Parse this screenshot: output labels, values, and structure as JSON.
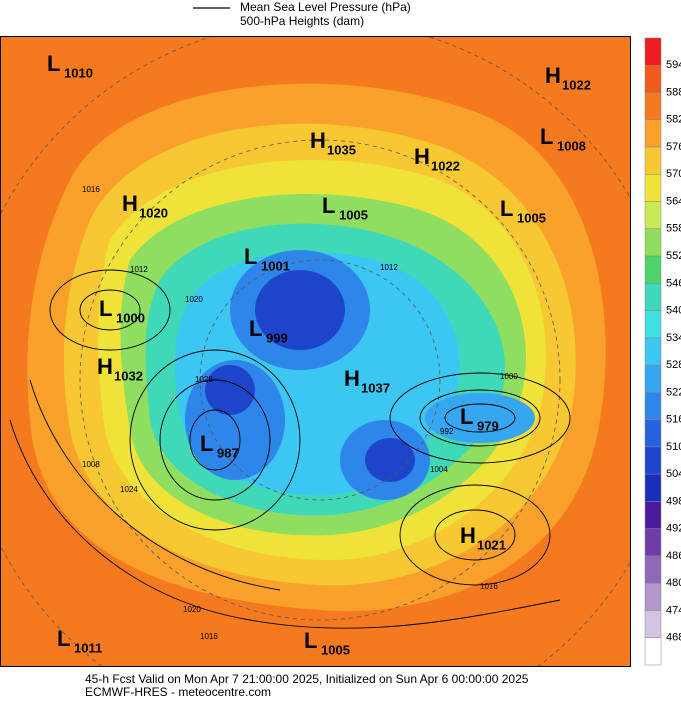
{
  "header": {
    "legend": [
      "Mean Sea Level Pressure (hPa)",
      "500-hPa Heights (dam)"
    ]
  },
  "colorbar": {
    "ticks": [
      594,
      588,
      582,
      576,
      570,
      564,
      558,
      552,
      546,
      540,
      534,
      528,
      522,
      516,
      510,
      504,
      498,
      492,
      486,
      480,
      474,
      468
    ],
    "colors": [
      "#ee1c1c",
      "#f05a1e",
      "#f5791f",
      "#f9a12b",
      "#f8c832",
      "#efe33a",
      "#c9ea55",
      "#8fde5f",
      "#4ed26a",
      "#3fd9b8",
      "#3fe0e0",
      "#3cc6f2",
      "#37a6f0",
      "#2f86ea",
      "#2662de",
      "#1f44cc",
      "#1a2db8",
      "#4a1a9a",
      "#6f3ca8",
      "#9068b8",
      "#b296cc",
      "#d4c4e2",
      "#ffffff"
    ]
  },
  "centers": [
    {
      "letter": "L",
      "value": "1010"
    },
    {
      "letter": "H",
      "value": "1022"
    },
    {
      "letter": "H",
      "value": "1035"
    },
    {
      "letter": "L",
      "value": "1008"
    },
    {
      "letter": "H",
      "value": "1022"
    },
    {
      "letter": "L",
      "value": "1005"
    },
    {
      "letter": "L",
      "value": "1005"
    },
    {
      "letter": "H",
      "value": "1020"
    },
    {
      "letter": "L",
      "value": "1001"
    },
    {
      "letter": "L",
      "value": "1000"
    },
    {
      "letter": "L",
      "value": "999"
    },
    {
      "letter": "H",
      "value": "1032"
    },
    {
      "letter": "H",
      "value": "1037"
    },
    {
      "letter": "L",
      "value": "979"
    },
    {
      "letter": "L",
      "value": "987"
    },
    {
      "letter": "H",
      "value": "1021"
    },
    {
      "letter": "L",
      "value": "1011"
    },
    {
      "letter": "L",
      "value": "1005"
    }
  ],
  "isobar_labels": [
    "1016",
    "1012",
    "1020",
    "1028",
    "1024",
    "1008",
    "1004",
    "992",
    "1000",
    "1016",
    "1012",
    "1020",
    "1016"
  ],
  "footer": [
    "45-h Fcst Valid on Mon Apr  7 21:00:00 2025, Initialized on Sun Apr  6 00:00:00 2025",
    "ECMWF-HRES  - meteocentre.com"
  ]
}
